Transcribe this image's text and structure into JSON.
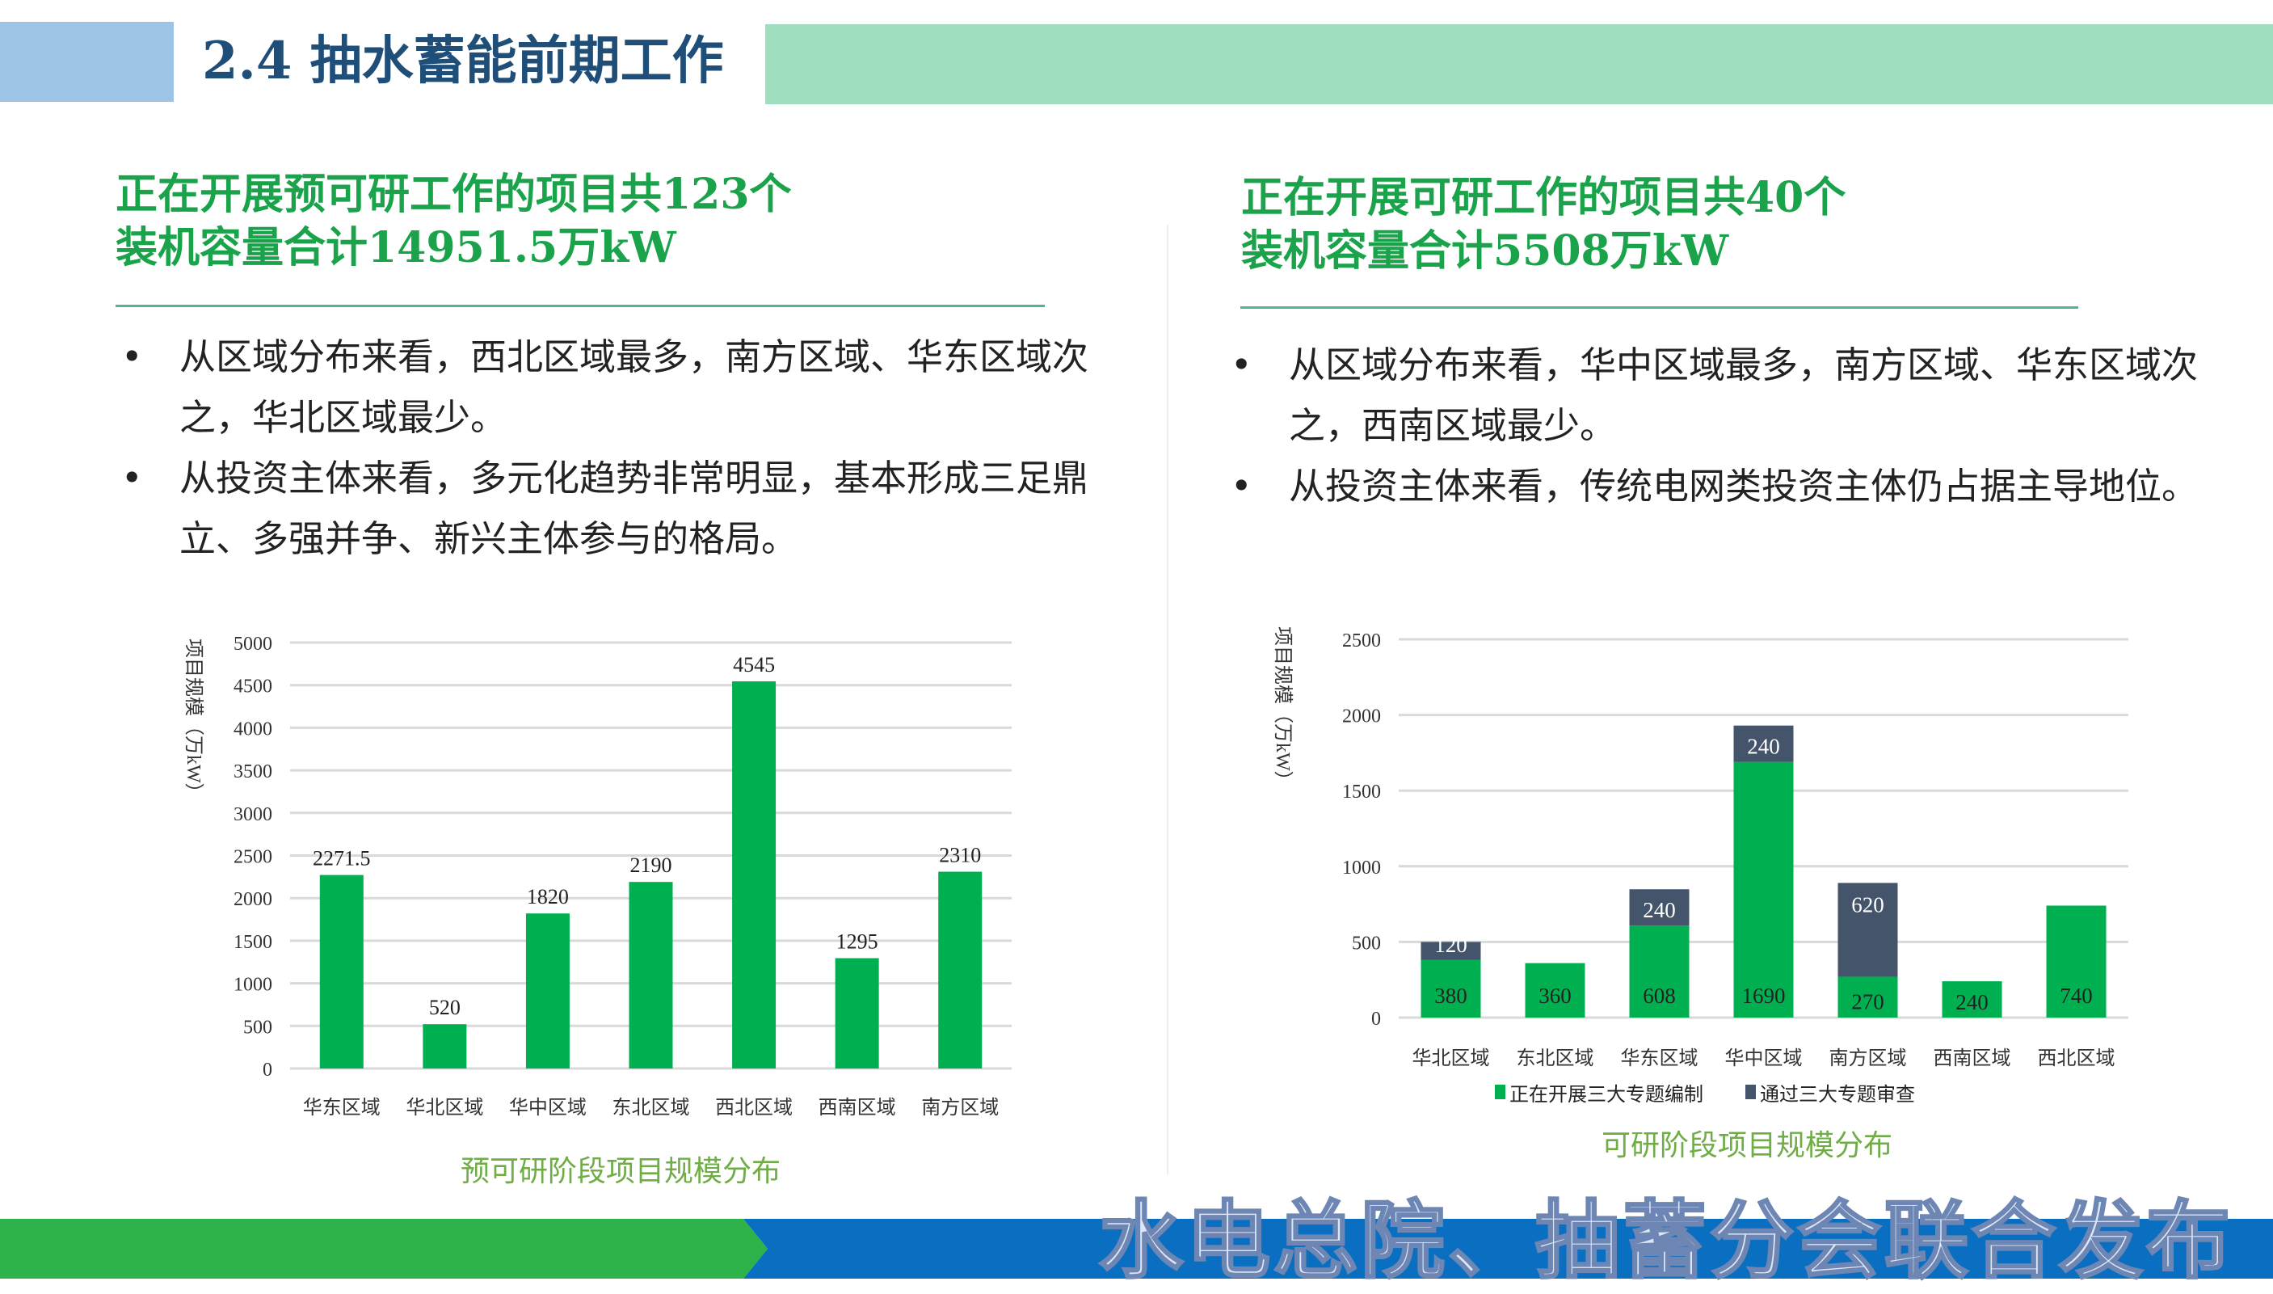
{
  "header": {
    "title": "2.4 抽水蓄能前期工作",
    "colors": {
      "blue_block": "#9dc3e6",
      "green_bar": "#9fdfbf",
      "title": "#1f4e79"
    }
  },
  "left": {
    "heading": [
      "正在开展预可研工作的项目共123个",
      "装机容量合计14951.5万kW"
    ],
    "bullets": [
      "从区域分布来看，西北区域最多，南方区域、华东区域次之，华北区域最少。",
      "从投资主体来看，多元化趋势非常明显，基本形成三足鼎立、多强并争、新兴主体参与的格局。"
    ],
    "caption": "预可研阶段项目规模分布"
  },
  "right": {
    "heading": [
      "正在开展可研工作的项目共40个",
      "装机容量合计5508万kW"
    ],
    "bullets": [
      "从区域分布来看，华中区域最多，南方区域、华东区域次之，西南区域最少。",
      "从投资主体来看，传统电网类投资主体仍占据主导地位。"
    ],
    "caption": "可研阶段项目规模分布"
  },
  "bullet_glyph": "•",
  "footer": {
    "publisher": "水电总院、抽蓄分会联合发布",
    "colors": {
      "green": "#2db34a",
      "blue": "#0a6fc0"
    }
  },
  "chart_data": [
    {
      "type": "bar",
      "ylabel": "项目规模（万kW）",
      "ylim": [
        0,
        5000
      ],
      "yticks": [
        0,
        500,
        1000,
        1500,
        2000,
        2500,
        3000,
        3500,
        4000,
        4500,
        5000
      ],
      "grid": true,
      "categories": [
        "华东区域",
        "华北区域",
        "华中区域",
        "东北区域",
        "西北区域",
        "西南区域",
        "南方区域"
      ],
      "values": [
        2271.5,
        520,
        1820,
        2190,
        4545,
        1295,
        2310
      ],
      "labels": [
        "2271.5",
        "520",
        "1820",
        "2190",
        "4545",
        "1295",
        "2310"
      ],
      "color": "#00b050"
    },
    {
      "type": "bar",
      "stacked": true,
      "ylabel": "项目规模（万kW）",
      "ylim": [
        0,
        2500
      ],
      "yticks": [
        0,
        500,
        1000,
        1500,
        2000,
        2500
      ],
      "grid": true,
      "legend": "bottom",
      "categories": [
        "华北区域",
        "东北区域",
        "华东区域",
        "华中区域",
        "南方区域",
        "西南区域",
        "西北区域"
      ],
      "series": [
        {
          "name": "正在开展三大专题编制",
          "values": [
            380,
            360,
            608,
            1690,
            270,
            240,
            740
          ],
          "color": "#00b050"
        },
        {
          "name": "通过三大专题审查",
          "values": [
            120,
            null,
            240,
            240,
            620,
            null,
            null
          ],
          "color": "#44546a"
        }
      ]
    }
  ]
}
